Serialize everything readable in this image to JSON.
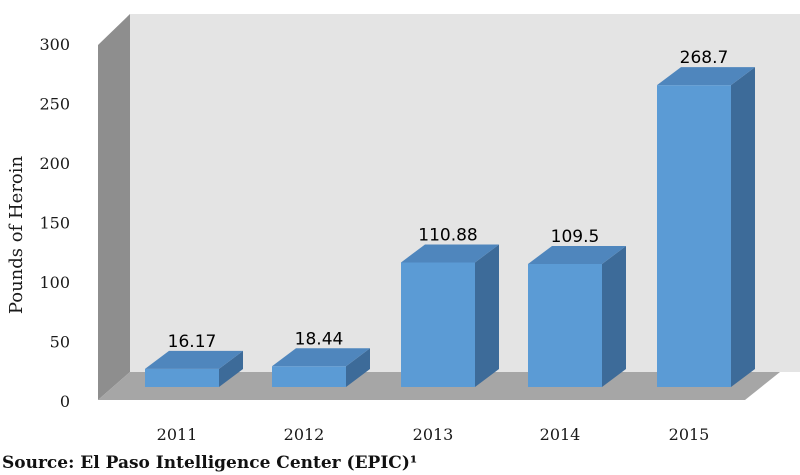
{
  "chart_data": {
    "type": "bar",
    "categories": [
      "2011",
      "2012",
      "2013",
      "2014",
      "2015"
    ],
    "values": [
      16.17,
      18.44,
      110.88,
      109.5,
      268.7
    ],
    "data_labels": [
      "16.17",
      "18.44",
      "110.88",
      "109.5",
      "268.7"
    ],
    "ylabel": "Pounds of Heroin",
    "xlabel": "",
    "ylim": [
      0,
      300
    ],
    "yticks": [
      "0",
      "50",
      "100",
      "150",
      "200",
      "250",
      "300"
    ],
    "grid": false,
    "three_d": true,
    "bar_color": "#5b9bd5",
    "wall_color": "#e4e4e4",
    "floor_color": "#a6a6a6"
  },
  "source": "Source:  El Paso Intelligence Center (EPIC)¹"
}
